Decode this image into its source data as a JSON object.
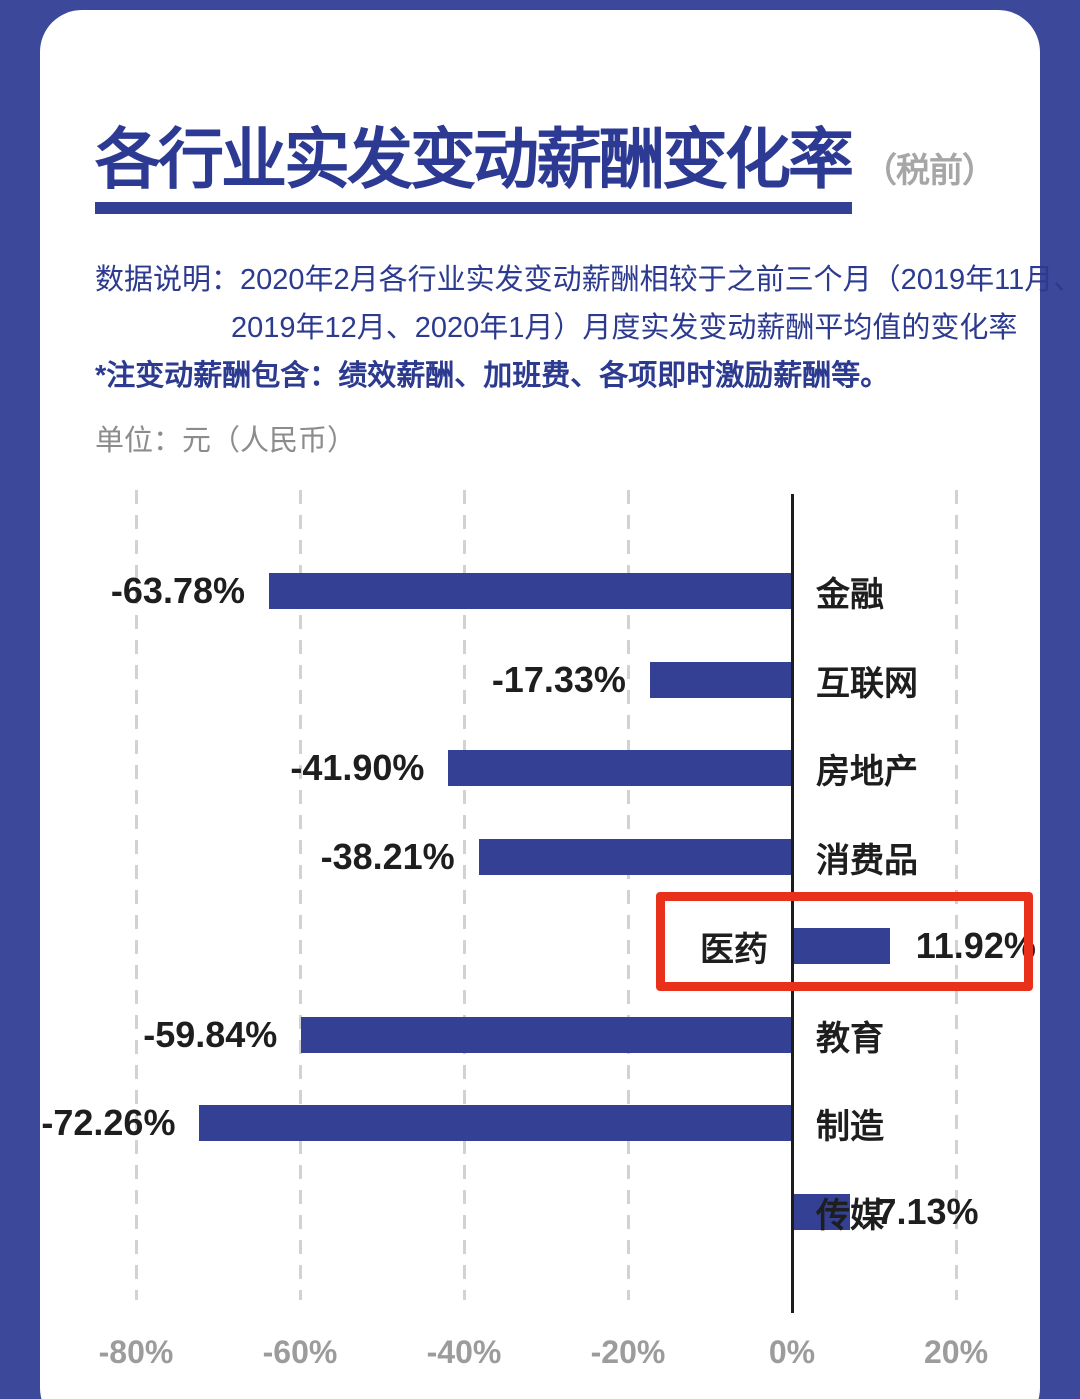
{
  "header": {
    "title": "各行业实发变动薪酬变化率",
    "title_suffix": "（税前）",
    "description_line1": "数据说明：2020年2月各行业实发变动薪酬相较于之前三个月（2019年11月、",
    "description_line2": "2019年12月、2020年1月）月度实发变动薪酬平均值的变化率",
    "note": "*注变动薪酬包含：绩效薪酬、加班费、各项即时激励薪酬等。",
    "unit_label": "单位：元（人民币）"
  },
  "colors": {
    "page_bg": "#3c4899",
    "bar_color": "#334094",
    "title_color": "#2d3a93",
    "text_blue": "#2c3a90",
    "suffix_gray": "#a6a6a6",
    "gray_text": "#8c8c8c",
    "axis_label": "#9c9c9c",
    "label_black": "#1e1e1e",
    "gridline": "#d2d2d2",
    "zero_line": "#1c1c1c",
    "highlight_red": "#e8301a"
  },
  "chart_data": {
    "type": "bar",
    "orientation": "horizontal",
    "title": "各行业实发变动薪酬变化率（税前）",
    "unit": "元（人民币）",
    "categories": [
      "金融",
      "互联网",
      "房地产",
      "消费品",
      "医药",
      "教育",
      "制造",
      "传媒"
    ],
    "values": [
      -63.78,
      -17.33,
      -41.9,
      -38.21,
      11.92,
      -59.84,
      -72.26,
      7.13
    ],
    "value_labels": [
      "-63.78%",
      "-17.33%",
      "-41.90%",
      "-38.21%",
      "11.92%",
      "-59.84%",
      "-72.26%",
      "7.13%"
    ],
    "x_tick_labels": [
      "-80%",
      "-60%",
      "-40%",
      "-20%",
      "0%",
      "20%"
    ],
    "x_tick_values": [
      -80,
      -60,
      -40,
      -20,
      0,
      20
    ],
    "xlim": [
      -80,
      20
    ],
    "grid": "dashed vertical gridlines every 20%, solid dark zero axis",
    "legend": "none",
    "highlight": {
      "category": "医药",
      "style": "red outline box"
    }
  }
}
